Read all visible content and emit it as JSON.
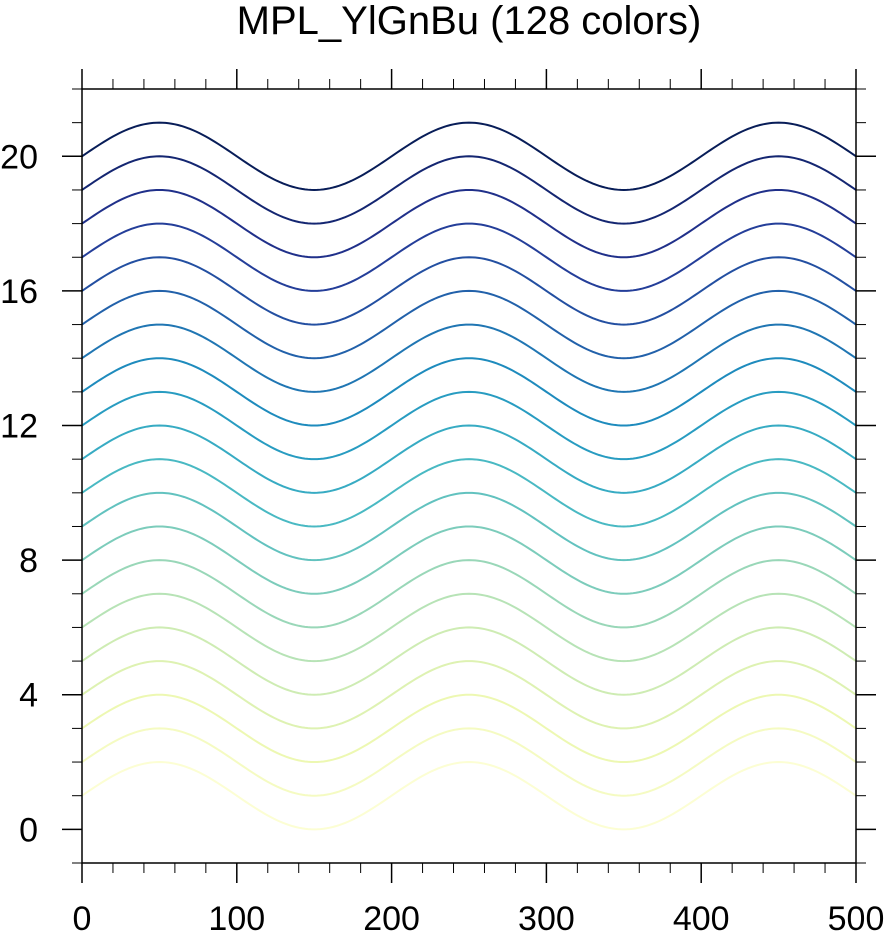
{
  "chart_data": {
    "type": "line",
    "title": "MPL_YlGnBu (128 colors)",
    "xlabel": "",
    "ylabel": "",
    "xlim": [
      0,
      500
    ],
    "ylim": [
      -1,
      22
    ],
    "x_ticks": [
      0,
      100,
      200,
      300,
      400,
      500
    ],
    "y_ticks": [
      0,
      4,
      8,
      12,
      16,
      20
    ],
    "x_minor_step": 20,
    "y_minor_step": 1,
    "grid": false,
    "series_formula": "y = offset + sin(2*pi*x/200)",
    "period": 200,
    "amplitude": 1,
    "offsets": [
      1,
      2,
      3,
      4,
      5,
      6,
      7,
      8,
      9,
      10,
      11,
      12,
      13,
      14,
      15,
      16,
      17,
      18,
      19,
      20
    ],
    "colormap": "YlGnBu",
    "colormap_stops": [
      "#ffffd9",
      "#edf8b1",
      "#c7e9b4",
      "#7fcdbb",
      "#41b6c4",
      "#1d91c0",
      "#225ea8",
      "#253494",
      "#081d58"
    ]
  }
}
